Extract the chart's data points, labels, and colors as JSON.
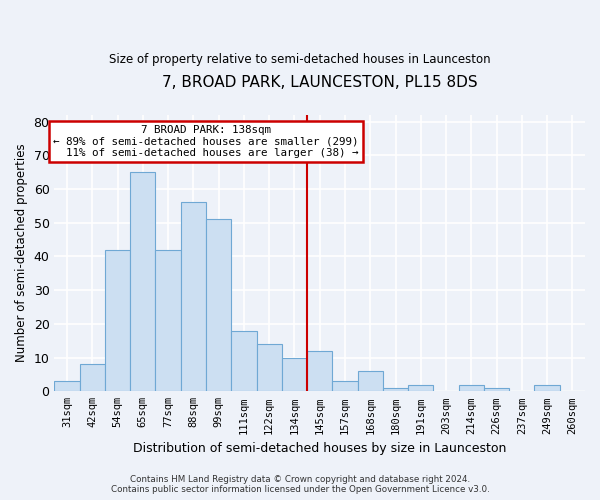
{
  "title": "7, BROAD PARK, LAUNCESTON, PL15 8DS",
  "subtitle": "Size of property relative to semi-detached houses in Launceston",
  "xlabel": "Distribution of semi-detached houses by size in Launceston",
  "ylabel": "Number of semi-detached properties",
  "footer_line1": "Contains HM Land Registry data © Crown copyright and database right 2024.",
  "footer_line2": "Contains public sector information licensed under the Open Government Licence v3.0.",
  "categories": [
    "31sqm",
    "42sqm",
    "54sqm",
    "65sqm",
    "77sqm",
    "88sqm",
    "99sqm",
    "111sqm",
    "122sqm",
    "134sqm",
    "145sqm",
    "157sqm",
    "168sqm",
    "180sqm",
    "191sqm",
    "203sqm",
    "214sqm",
    "226sqm",
    "237sqm",
    "249sqm",
    "260sqm"
  ],
  "values": [
    3,
    8,
    42,
    65,
    42,
    56,
    51,
    18,
    14,
    10,
    12,
    3,
    6,
    1,
    2,
    0,
    2,
    1,
    0,
    2,
    0
  ],
  "bar_color": "#ccdff2",
  "bar_edge_color": "#6fa8d4",
  "marker_label": "7 BROAD PARK: 138sqm",
  "pct_smaller": 89,
  "count_smaller": 299,
  "pct_larger": 11,
  "count_larger": 38,
  "marker_line_color": "#cc0000",
  "annotation_box_edge_color": "#cc0000",
  "ylim": [
    0,
    82
  ],
  "background_color": "#eef2f9",
  "grid_color": "#d8e0ee",
  "bar_width": 1.0,
  "marker_bar_index": 9.5,
  "yticks": [
    0,
    10,
    20,
    30,
    40,
    50,
    60,
    70,
    80
  ]
}
